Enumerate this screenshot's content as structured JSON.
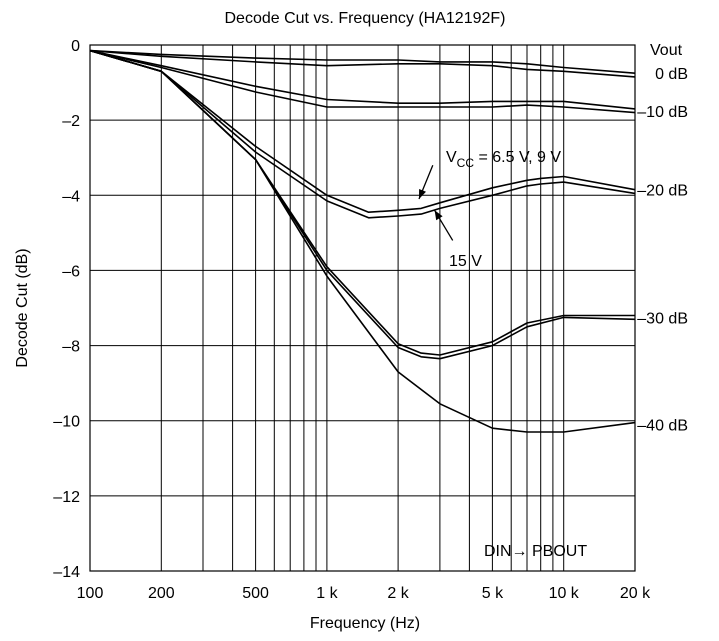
{
  "chart_data": {
    "type": "line",
    "title": "Decode Cut vs. Frequency  (HA12192F)",
    "xlabel": "Frequency  (Hz)",
    "ylabel": "Decode Cut  (dB)",
    "x_scale": "log",
    "xlim": [
      100,
      20000
    ],
    "ylim": [
      -14,
      0
    ],
    "grid": true,
    "x_gridlines": [
      200,
      300,
      400,
      500,
      600,
      700,
      800,
      900,
      1000,
      2000,
      3000,
      4000,
      5000,
      6000,
      7000,
      8000,
      9000,
      10000
    ],
    "x_ticks": [
      {
        "value": 100,
        "label": "100"
      },
      {
        "value": 200,
        "label": "200"
      },
      {
        "value": 500,
        "label": "500"
      },
      {
        "value": 1000,
        "label": "1 k"
      },
      {
        "value": 2000,
        "label": "2 k"
      },
      {
        "value": 5000,
        "label": "5 k"
      },
      {
        "value": 10000,
        "label": "10 k"
      },
      {
        "value": 20000,
        "label": "20 k"
      }
    ],
    "y_ticks": [
      {
        "value": 0,
        "label": "0"
      },
      {
        "value": -2,
        "label": "–2"
      },
      {
        "value": -4,
        "label": "–4"
      },
      {
        "value": -6,
        "label": "–6"
      },
      {
        "value": -8,
        "label": "–8"
      },
      {
        "value": -10,
        "label": "–10"
      },
      {
        "value": -12,
        "label": "–12"
      },
      {
        "value": -14,
        "label": "–14"
      }
    ],
    "right_axis": {
      "title": "Vout",
      "labels": [
        {
          "y": -0.75,
          "label": "0 dB"
        },
        {
          "y": -1.75,
          "label": "–10 dB"
        },
        {
          "y": -3.85,
          "label": "–20 dB"
        },
        {
          "y": -7.25,
          "label": "–30 dB"
        },
        {
          "y": -10.1,
          "label": "–40 dB"
        }
      ]
    },
    "annotations": {
      "vcc_prefix": "V",
      "vcc_sub": "CC",
      "vcc_suffix": " = 6.5 V, 9 V",
      "v15": "15 V",
      "mode": "DIN→  PBOUT",
      "vcc_arrow": {
        "from": [
          2800,
          -3.2
        ],
        "to": [
          2450,
          -4.1
        ]
      },
      "v15_arrow": {
        "from": [
          3400,
          -5.2
        ],
        "to": [
          2850,
          -4.4
        ]
      }
    },
    "series": [
      {
        "x": [
          100,
          200,
          500,
          1000,
          2000,
          3000,
          5000,
          7000,
          10000,
          20000
        ],
        "values": [
          -0.15,
          -0.25,
          -0.35,
          -0.4,
          -0.4,
          -0.45,
          -0.45,
          -0.5,
          -0.6,
          -0.75
        ]
      },
      {
        "x": [
          100,
          200,
          500,
          1000,
          2000,
          3000,
          5000,
          7000,
          10000,
          20000
        ],
        "values": [
          -0.15,
          -0.3,
          -0.45,
          -0.55,
          -0.5,
          -0.5,
          -0.55,
          -0.65,
          -0.7,
          -0.85
        ]
      },
      {
        "x": [
          100,
          200,
          500,
          1000,
          2000,
          3000,
          5000,
          7000,
          10000,
          20000
        ],
        "values": [
          -0.15,
          -0.55,
          -1.1,
          -1.45,
          -1.55,
          -1.55,
          -1.5,
          -1.5,
          -1.5,
          -1.7
        ]
      },
      {
        "x": [
          100,
          200,
          500,
          1000,
          2000,
          3000,
          5000,
          7000,
          10000,
          20000
        ],
        "values": [
          -0.15,
          -0.6,
          -1.25,
          -1.65,
          -1.65,
          -1.65,
          -1.65,
          -1.6,
          -1.65,
          -1.8
        ]
      },
      {
        "x": [
          100,
          200,
          500,
          1000,
          1500,
          2000,
          2500,
          3000,
          5000,
          7000,
          8000,
          10000,
          20000
        ],
        "values": [
          -0.15,
          -0.7,
          -2.7,
          -4.0,
          -4.45,
          -4.4,
          -4.35,
          -4.2,
          -3.8,
          -3.6,
          -3.55,
          -3.5,
          -3.85
        ]
      },
      {
        "x": [
          100,
          200,
          500,
          1000,
          1500,
          2000,
          2500,
          3000,
          5000,
          7000,
          8000,
          10000,
          20000
        ],
        "values": [
          -0.15,
          -0.7,
          -2.85,
          -4.15,
          -4.6,
          -4.55,
          -4.5,
          -4.35,
          -4.0,
          -3.75,
          -3.7,
          -3.65,
          -3.95
        ]
      },
      {
        "x": [
          100,
          200,
          500,
          1000,
          2000,
          2500,
          3000,
          5000,
          7000,
          10000,
          20000
        ],
        "values": [
          -0.15,
          -0.7,
          -3.05,
          -5.9,
          -7.95,
          -8.2,
          -8.25,
          -7.9,
          -7.4,
          -7.2,
          -7.2
        ]
      },
      {
        "x": [
          100,
          200,
          500,
          1000,
          2000,
          2500,
          3000,
          5000,
          7000,
          10000,
          20000
        ],
        "values": [
          -0.15,
          -0.7,
          -3.05,
          -6.0,
          -8.05,
          -8.3,
          -8.35,
          -8.0,
          -7.5,
          -7.25,
          -7.3
        ]
      },
      {
        "x": [
          100,
          200,
          500,
          1000,
          2000,
          3000,
          5000,
          7000,
          10000,
          20000
        ],
        "values": [
          -0.15,
          -0.7,
          -3.05,
          -6.15,
          -8.7,
          -9.55,
          -10.2,
          -10.3,
          -10.3,
          -10.05
        ]
      }
    ]
  }
}
